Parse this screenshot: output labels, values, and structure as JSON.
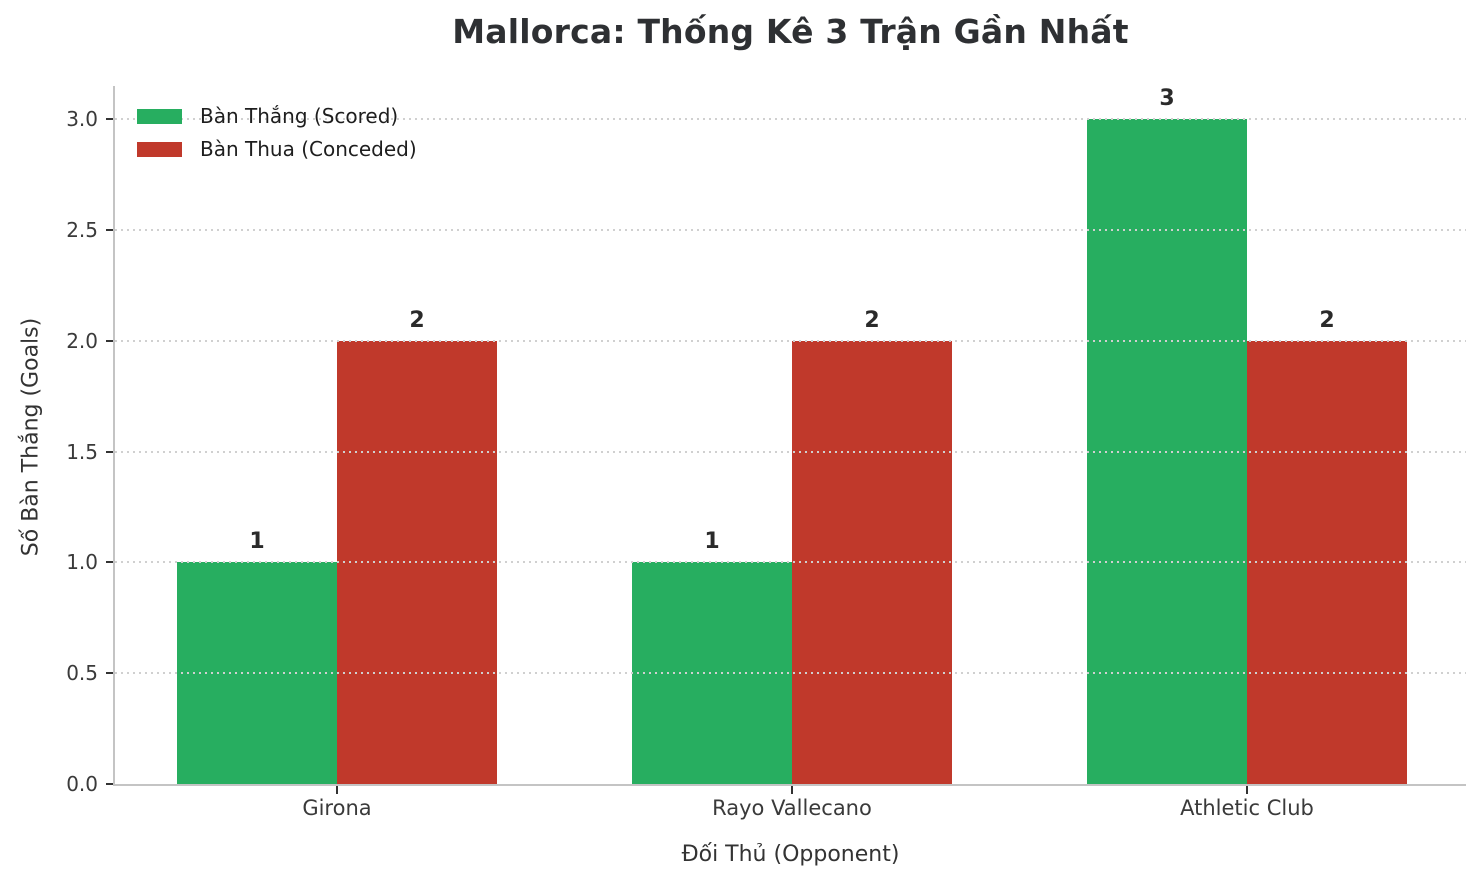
{
  "title": "Mallorca: Thống Kê 3 Trận Gần Nhất",
  "chart_data": {
    "type": "bar",
    "title": "Mallorca: Thống Kê 3 Trận Gần Nhất",
    "xlabel": "Đối Thủ (Opponent)",
    "ylabel": "Số Bàn Thắng (Goals)",
    "categories": [
      "Girona",
      "Rayo Vallecano",
      "Athletic Club"
    ],
    "series": [
      {
        "name": "Bàn Thắng (Scored)",
        "values": [
          1,
          1,
          3
        ],
        "color": "#27ae60"
      },
      {
        "name": "Bàn Thua (Conceded)",
        "values": [
          2,
          2,
          2
        ],
        "color": "#c0392b"
      }
    ],
    "ylim": [
      0,
      3.15
    ],
    "yticks": [
      0.0,
      0.5,
      1.0,
      1.5,
      2.0,
      2.5,
      3.0
    ],
    "ytick_labels": [
      "0.0",
      "0.5",
      "1.0",
      "1.5",
      "2.0",
      "2.5",
      "3.0"
    ],
    "grid": "horizontal-dotted",
    "legend_position": "upper-left",
    "colors": {
      "scored": "#27ae60",
      "conceded": "#c0392b",
      "grid": "#d0d0d0",
      "spine": "#c4c4c4",
      "tick": "#333333",
      "text": "#2e3033"
    }
  }
}
